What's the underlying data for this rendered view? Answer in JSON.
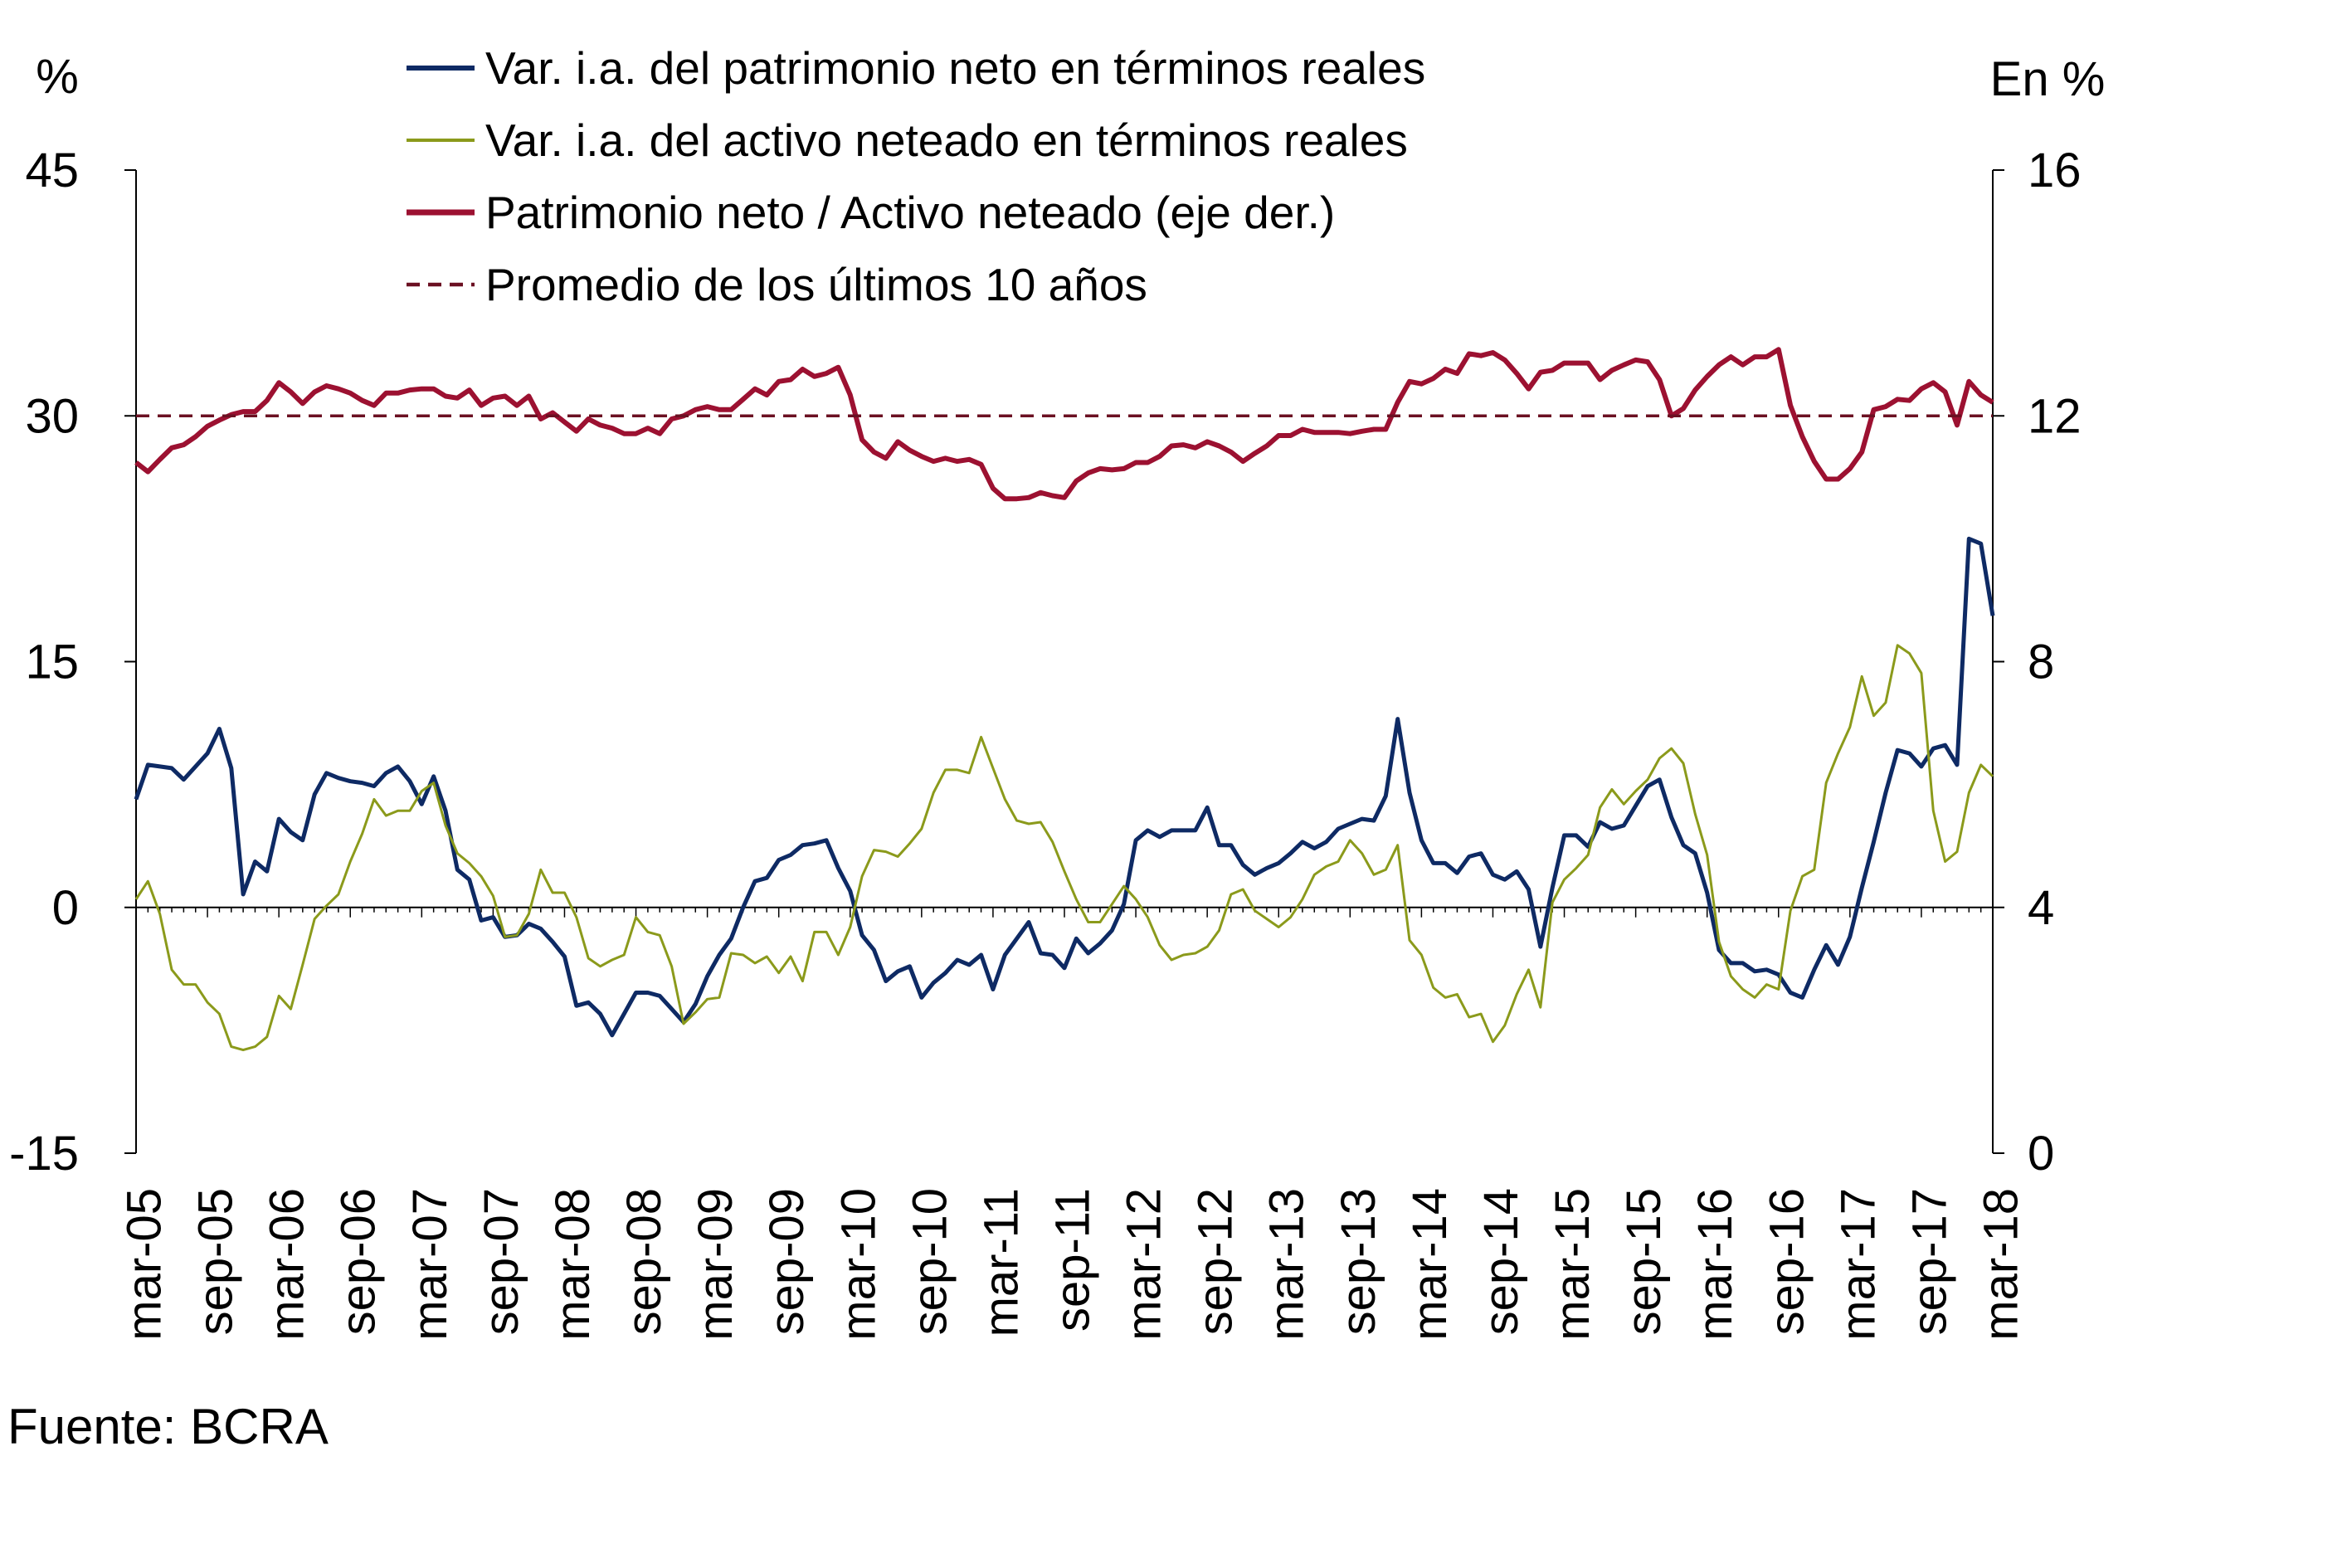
{
  "chart_data": {
    "type": "line",
    "left_axis_unit": "%",
    "right_axis_unit": "En %",
    "ylim_left": [
      -15,
      45
    ],
    "ylim_right": [
      0,
      16
    ],
    "yticks_left": [
      "45",
      "30",
      "15",
      "0",
      "-15"
    ],
    "yticks_left_values": [
      45,
      30,
      15,
      0,
      -15
    ],
    "yticks_right": [
      "16",
      "12",
      "8",
      "4",
      "0"
    ],
    "yticks_right_values": [
      16,
      12,
      8,
      4,
      0
    ],
    "x_start": "2005-03",
    "frequency": "monthly",
    "xticks": [
      "mar-05",
      "sep-05",
      "mar-06",
      "sep-06",
      "mar-07",
      "sep-07",
      "mar-08",
      "sep-08",
      "mar-09",
      "sep-09",
      "mar-10",
      "sep-10",
      "mar-11",
      "sep-11",
      "mar-12",
      "sep-12",
      "mar-13",
      "sep-13",
      "mar-14",
      "sep-14",
      "mar-15",
      "sep-15",
      "mar-16",
      "sep-16",
      "mar-17",
      "sep-17",
      "mar-18"
    ],
    "grid": false,
    "legend_placement": "top",
    "source": "Fuente: BCRA",
    "series": [
      {
        "name": "Var. i.a. del patrimonio neto en términos reales",
        "axis": "left",
        "color": "#0e2a64",
        "style": "solid",
        "values": [
          6.6,
          8.7,
          8.6,
          8.5,
          7.8,
          8.6,
          9.4,
          10.9,
          8.5,
          0.8,
          2.8,
          2.2,
          5.4,
          4.6,
          4.1,
          6.9,
          8.2,
          7.9,
          7.7,
          7.6,
          7.4,
          8.2,
          8.6,
          7.7,
          6.3,
          8.0,
          5.9,
          2.3,
          1.7,
          -0.8,
          -0.6,
          -1.8,
          -1.7,
          -1.0,
          -1.3,
          -2.1,
          -3.0,
          -6.0,
          -5.8,
          -6.5,
          -7.8,
          -6.5,
          -5.2,
          -5.2,
          -5.4,
          -6.2,
          -7.0,
          -5.9,
          -4.2,
          -2.9,
          -1.9,
          0.0,
          1.6,
          1.8,
          2.9,
          3.2,
          3.8,
          3.9,
          4.1,
          2.4,
          1.0,
          -1.7,
          -2.6,
          -4.5,
          -3.9,
          -3.6,
          -5.5,
          -4.6,
          -4.0,
          -3.2,
          -3.5,
          -2.9,
          -5.0,
          -2.9,
          -1.9,
          -0.9,
          -2.8,
          -2.9,
          -3.7,
          -1.9,
          -2.8,
          -2.2,
          -1.4,
          0.2,
          4.1,
          4.7,
          4.3,
          4.7,
          4.7,
          4.7,
          6.1,
          3.8,
          3.8,
          2.6,
          2.0,
          2.4,
          2.7,
          3.3,
          4.0,
          3.6,
          4.0,
          4.8,
          5.1,
          5.4,
          5.3,
          6.8,
          11.5,
          7.0,
          4.1,
          2.7,
          2.7,
          2.1,
          3.1,
          3.3,
          2.0,
          1.7,
          2.2,
          1.1,
          -2.4,
          1.2,
          4.4,
          4.4,
          3.7,
          5.2,
          4.8,
          5.0,
          6.2,
          7.4,
          7.8,
          5.5,
          3.8,
          3.3,
          0.9,
          -2.6,
          -3.4,
          -3.4,
          -3.9,
          -3.8,
          -4.1,
          -5.2,
          -5.5,
          -3.8,
          -2.3,
          -3.5,
          -1.8,
          1.2,
          4.0,
          7.0,
          9.6,
          9.4,
          8.6,
          9.7,
          9.9,
          8.7,
          22.5,
          22.2,
          17.8
        ]
      },
      {
        "name": "Var. i.a. del activo neteado en términos reales",
        "axis": "left",
        "color": "#8b9a1b",
        "style": "solid-thin",
        "values": [
          0.5,
          1.6,
          -0.4,
          -3.8,
          -4.7,
          -4.7,
          -5.8,
          -6.5,
          -8.5,
          -8.7,
          -8.5,
          -7.9,
          -5.4,
          -6.2,
          -3.5,
          -0.7,
          0.1,
          0.8,
          2.8,
          4.5,
          6.6,
          5.6,
          5.9,
          5.9,
          7.1,
          7.6,
          5.0,
          3.3,
          2.7,
          1.9,
          0.7,
          -1.8,
          -1.7,
          -0.4,
          2.3,
          0.9,
          0.9,
          -0.6,
          -3.1,
          -3.6,
          -3.2,
          -2.9,
          -0.6,
          -1.5,
          -1.7,
          -3.6,
          -7.1,
          -6.4,
          -5.6,
          -5.5,
          -2.8,
          -2.9,
          -3.4,
          -3.0,
          -4.0,
          -3.0,
          -4.5,
          -1.5,
          -1.5,
          -2.9,
          -1.2,
          1.9,
          3.5,
          3.4,
          3.1,
          3.9,
          4.8,
          7.0,
          8.4,
          8.4,
          8.2,
          10.4,
          8.5,
          6.6,
          5.3,
          5.1,
          5.2,
          4.0,
          2.2,
          0.5,
          -0.9,
          -0.9,
          0.2,
          1.3,
          0.5,
          -0.6,
          -2.3,
          -3.2,
          -2.9,
          -2.8,
          -2.4,
          -1.4,
          0.8,
          1.1,
          -0.2,
          -0.7,
          -1.2,
          -0.6,
          0.5,
          2.0,
          2.5,
          2.8,
          4.1,
          3.3,
          2.0,
          2.3,
          3.8,
          -2.0,
          -2.9,
          -4.9,
          -5.5,
          -5.3,
          -6.7,
          -6.5,
          -8.2,
          -7.2,
          -5.3,
          -3.8,
          -6.1,
          0.3,
          1.7,
          2.4,
          3.2,
          6.1,
          7.2,
          6.3,
          7.1,
          7.8,
          9.1,
          9.7,
          8.8,
          5.7,
          3.2,
          -2.1,
          -4.2,
          -5.0,
          -5.5,
          -4.7,
          -5.0,
          -0.2,
          1.9,
          2.3,
          7.6,
          9.4,
          11.0,
          14.1,
          11.7,
          12.5,
          16.0,
          15.5,
          14.3,
          5.9,
          2.8,
          3.4,
          7.0,
          8.7,
          8.0
        ]
      },
      {
        "name": "Patrimonio neto / Activo neteado (eje der.)",
        "axis": "right",
        "color": "#9c1131",
        "style": "solid-thick",
        "values": [
          11.24,
          11.09,
          11.29,
          11.48,
          11.53,
          11.66,
          11.83,
          11.93,
          12.02,
          12.07,
          12.07,
          12.25,
          12.54,
          12.39,
          12.2,
          12.39,
          12.49,
          12.44,
          12.37,
          12.25,
          12.17,
          12.37,
          12.37,
          12.42,
          12.44,
          12.44,
          12.32,
          12.29,
          12.42,
          12.17,
          12.29,
          12.32,
          12.17,
          12.32,
          11.95,
          12.05,
          11.9,
          11.75,
          11.95,
          11.85,
          11.8,
          11.71,
          11.71,
          11.8,
          11.71,
          11.95,
          12.0,
          12.1,
          12.15,
          12.1,
          12.1,
          12.27,
          12.44,
          12.34,
          12.56,
          12.59,
          12.76,
          12.64,
          12.69,
          12.79,
          12.34,
          11.61,
          11.41,
          11.31,
          11.58,
          11.44,
          11.34,
          11.26,
          11.31,
          11.26,
          11.29,
          11.21,
          10.82,
          10.65,
          10.65,
          10.67,
          10.75,
          10.7,
          10.67,
          10.94,
          11.07,
          11.14,
          11.12,
          11.14,
          11.24,
          11.24,
          11.34,
          11.51,
          11.53,
          11.48,
          11.58,
          11.51,
          11.41,
          11.26,
          11.39,
          11.51,
          11.68,
          11.68,
          11.78,
          11.73,
          11.73,
          11.73,
          11.71,
          11.75,
          11.78,
          11.78,
          12.22,
          12.56,
          12.52,
          12.61,
          12.76,
          12.69,
          13.01,
          12.98,
          13.03,
          12.91,
          12.69,
          12.44,
          12.71,
          12.74,
          12.86,
          12.86,
          12.86,
          12.59,
          12.74,
          12.83,
          12.91,
          12.88,
          12.59,
          12.0,
          12.12,
          12.42,
          12.64,
          12.83,
          12.96,
          12.83,
          12.96,
          12.96,
          13.08,
          12.17,
          11.66,
          11.26,
          10.97,
          10.97,
          11.14,
          11.41,
          12.1,
          12.15,
          12.27,
          12.25,
          12.44,
          12.54,
          12.39,
          11.85,
          12.56,
          12.34,
          12.22
        ]
      },
      {
        "name": "Promedio de los últimos 10 años",
        "axis": "right",
        "color": "#6b1022",
        "style": "dashed",
        "value": 12.0
      }
    ]
  }
}
